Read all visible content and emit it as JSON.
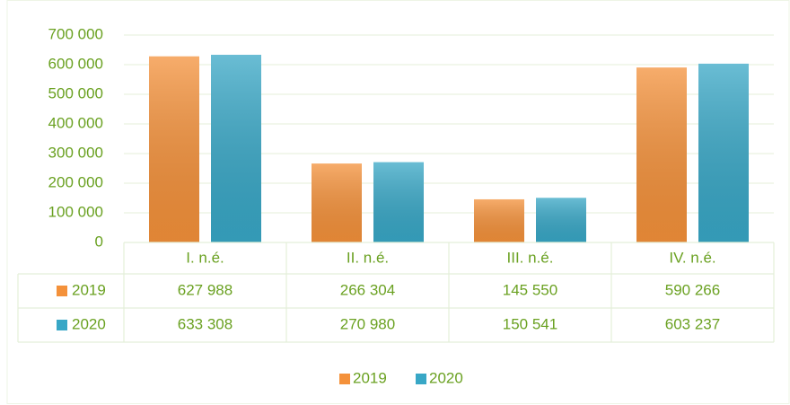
{
  "chart_data": {
    "type": "bar",
    "categories": [
      "I. n.é.",
      "II. n.é.",
      "III. n.é.",
      "IV. n.é."
    ],
    "series": [
      {
        "name": "2019",
        "color": "#f4913a",
        "values": [
          627988,
          266304,
          145550,
          590266
        ],
        "value_labels": [
          "627 988",
          "266 304",
          "145 550",
          "590 266"
        ]
      },
      {
        "name": "2020",
        "color": "#38a7c6",
        "values": [
          633308,
          270980,
          150541,
          603237
        ],
        "value_labels": [
          "633 308",
          "270 980",
          "150 541",
          "603 237"
        ]
      }
    ],
    "ylim": [
      0,
      700000
    ],
    "yticks": [
      0,
      {
        "value": 100000,
        "label": "100 000"
      },
      {
        "value": 200000,
        "label": "200 000"
      },
      {
        "value": 300000,
        "label": "300 000"
      },
      {
        "value": 400000,
        "label": "400 000"
      },
      {
        "value": 500000,
        "label": "500 000"
      },
      {
        "value": 600000,
        "label": "600 000"
      },
      {
        "value": 700000,
        "label": "700 000"
      }
    ],
    "grid": true,
    "legend": "bottom",
    "data_table": true
  }
}
